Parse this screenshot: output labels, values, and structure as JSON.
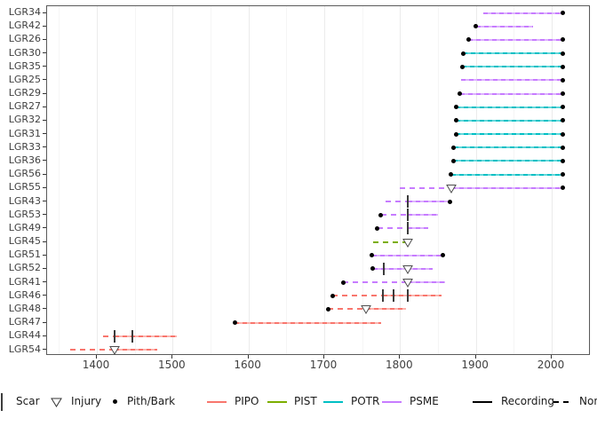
{
  "colors": {
    "PIPO": "#F8766D",
    "PIPO_light": "#fcb4ae",
    "PIST": "#7CAE00",
    "PIST_light": "#b0cf60",
    "POTR": "#00BFC4",
    "POTR_light": "#63d8db",
    "PSME": "#C77CFF",
    "PSME_light": "#ddb2ff",
    "recording_black": "#000000",
    "marker_stroke": "#4d4d4d",
    "axis_text": "#404040",
    "panel_border": "#5a5a5a",
    "grid_major": "#ebebeb",
    "grid_minor": "#f5f5f5"
  },
  "chart_data": {
    "type": "line",
    "title": "",
    "xlabel": "",
    "ylabel": "",
    "x_ticks": [
      1400,
      1500,
      1600,
      1700,
      1800,
      1900,
      2000
    ],
    "minor_ticks": [
      1350,
      1450,
      1550,
      1650,
      1750,
      1850,
      1950,
      2050
    ],
    "xlim": [
      1334,
      2052
    ],
    "legend_position": "bottom",
    "grid": true,
    "series": [
      {
        "name": "LGR34",
        "species": "PSME",
        "pith": false,
        "bark": true,
        "segments": [
          {
            "start": 1910,
            "end": 2015,
            "recording": true
          }
        ],
        "scars": [],
        "injuries": []
      },
      {
        "name": "LGR42",
        "species": "PSME",
        "pith": true,
        "bark": false,
        "segments": [
          {
            "start": 1900,
            "end": 1975,
            "recording": true
          }
        ],
        "scars": [],
        "injuries": []
      },
      {
        "name": "LGR26",
        "species": "PSME",
        "pith": true,
        "bark": true,
        "segments": [
          {
            "start": 1890,
            "end": 2015,
            "recording": true
          }
        ],
        "scars": [],
        "injuries": []
      },
      {
        "name": "LGR30",
        "species": "POTR",
        "pith": true,
        "bark": true,
        "segments": [
          {
            "start": 1883,
            "end": 2015,
            "recording": true
          }
        ],
        "scars": [],
        "injuries": []
      },
      {
        "name": "LGR35",
        "species": "POTR",
        "pith": true,
        "bark": true,
        "segments": [
          {
            "start": 1882,
            "end": 2015,
            "recording": true
          }
        ],
        "scars": [],
        "injuries": []
      },
      {
        "name": "LGR25",
        "species": "PSME",
        "pith": false,
        "bark": true,
        "segments": [
          {
            "start": 1880,
            "end": 2015,
            "recording": true
          }
        ],
        "scars": [],
        "injuries": []
      },
      {
        "name": "LGR29",
        "species": "PSME",
        "pith": true,
        "bark": true,
        "segments": [
          {
            "start": 1879,
            "end": 2015,
            "recording": true
          }
        ],
        "scars": [],
        "injuries": []
      },
      {
        "name": "LGR27",
        "species": "POTR",
        "pith": true,
        "bark": true,
        "segments": [
          {
            "start": 1874,
            "end": 2015,
            "recording": true
          }
        ],
        "scars": [],
        "injuries": []
      },
      {
        "name": "LGR32",
        "species": "POTR",
        "pith": true,
        "bark": true,
        "segments": [
          {
            "start": 1874,
            "end": 2015,
            "recording": true
          }
        ],
        "scars": [],
        "injuries": []
      },
      {
        "name": "LGR31",
        "species": "POTR",
        "pith": true,
        "bark": true,
        "segments": [
          {
            "start": 1874,
            "end": 2015,
            "recording": true
          }
        ],
        "scars": [],
        "injuries": []
      },
      {
        "name": "LGR33",
        "species": "POTR",
        "pith": true,
        "bark": true,
        "segments": [
          {
            "start": 1871,
            "end": 2015,
            "recording": true
          }
        ],
        "scars": [],
        "injuries": []
      },
      {
        "name": "LGR36",
        "species": "POTR",
        "pith": true,
        "bark": true,
        "segments": [
          {
            "start": 1870,
            "end": 2015,
            "recording": true
          }
        ],
        "scars": [],
        "injuries": []
      },
      {
        "name": "LGR56",
        "species": "POTR",
        "pith": true,
        "bark": true,
        "segments": [
          {
            "start": 1867,
            "end": 2015,
            "recording": true
          }
        ],
        "scars": [],
        "injuries": []
      },
      {
        "name": "LGR55",
        "species": "PSME",
        "pith": false,
        "bark": true,
        "segments": [
          {
            "start": 1800,
            "end": 1867,
            "recording": false
          },
          {
            "start": 1867,
            "end": 2015,
            "recording": true
          }
        ],
        "scars": [],
        "injuries": [
          1867
        ]
      },
      {
        "name": "LGR43",
        "species": "PSME",
        "pith": false,
        "bark": true,
        "segments": [
          {
            "start": 1781,
            "end": 1810,
            "recording": false
          },
          {
            "start": 1810,
            "end": 1866,
            "recording": true
          }
        ],
        "scars": [
          1810
        ],
        "injuries": []
      },
      {
        "name": "LGR53",
        "species": "PSME",
        "pith": true,
        "bark": false,
        "segments": [
          {
            "start": 1775,
            "end": 1810,
            "recording": false
          },
          {
            "start": 1810,
            "end": 1850,
            "recording": true
          }
        ],
        "scars": [
          1810
        ],
        "injuries": []
      },
      {
        "name": "LGR49",
        "species": "PSME",
        "pith": true,
        "bark": false,
        "segments": [
          {
            "start": 1770,
            "end": 1810,
            "recording": false
          },
          {
            "start": 1810,
            "end": 1837,
            "recording": true
          }
        ],
        "scars": [
          1810
        ],
        "injuries": []
      },
      {
        "name": "LGR45",
        "species": "PIST",
        "pith": false,
        "bark": false,
        "segments": [
          {
            "start": 1765,
            "end": 1810,
            "recording": false
          }
        ],
        "scars": [],
        "injuries": [
          1810
        ]
      },
      {
        "name": "LGR51",
        "species": "PSME",
        "pith": true,
        "bark": true,
        "segments": [
          {
            "start": 1763,
            "end": 1857,
            "recording": true
          }
        ],
        "scars": [],
        "injuries": []
      },
      {
        "name": "LGR52",
        "species": "PSME",
        "pith": true,
        "bark": false,
        "segments": [
          {
            "start": 1764,
            "end": 1843,
            "recording": true
          }
        ],
        "scars": [
          1778
        ],
        "injuries": [
          1810
        ]
      },
      {
        "name": "LGR41",
        "species": "PSME",
        "pith": true,
        "bark": false,
        "segments": [
          {
            "start": 1725,
            "end": 1810,
            "recording": false
          },
          {
            "start": 1810,
            "end": 1859,
            "recording": true
          }
        ],
        "scars": [],
        "injuries": [
          1810
        ]
      },
      {
        "name": "LGR46",
        "species": "PIPO",
        "pith": true,
        "bark": false,
        "segments": [
          {
            "start": 1711,
            "end": 1777,
            "recording": false
          },
          {
            "start": 1777,
            "end": 1855,
            "recording": true
          }
        ],
        "scars": [
          1777,
          1791,
          1810
        ],
        "injuries": []
      },
      {
        "name": "LGR48",
        "species": "PIPO",
        "pith": true,
        "bark": false,
        "segments": [
          {
            "start": 1705,
            "end": 1755,
            "recording": false
          },
          {
            "start": 1755,
            "end": 1808,
            "recording": true
          }
        ],
        "scars": [],
        "injuries": [
          1755
        ]
      },
      {
        "name": "LGR47",
        "species": "PIPO",
        "pith": true,
        "bark": false,
        "segments": [
          {
            "start": 1582,
            "end": 1775,
            "recording": true
          }
        ],
        "scars": [],
        "injuries": []
      },
      {
        "name": "LGR44",
        "species": "PIPO",
        "pith": false,
        "bark": false,
        "segments": [
          {
            "start": 1408,
            "end": 1423,
            "recording": false
          },
          {
            "start": 1423,
            "end": 1505,
            "recording": true
          }
        ],
        "scars": [
          1423,
          1447
        ],
        "injuries": []
      },
      {
        "name": "LGR54",
        "species": "PIPO",
        "pith": false,
        "bark": false,
        "segments": [
          {
            "start": 1365,
            "end": 1423,
            "recording": false
          },
          {
            "start": 1423,
            "end": 1480,
            "recording": true
          }
        ],
        "scars": [],
        "injuries": [
          1423
        ]
      }
    ]
  },
  "legend": {
    "scar_label": "Scar",
    "injury_label": "Injury",
    "pith_bark_label": "Pith/Bark",
    "species": [
      {
        "label": "PIPO",
        "color": "#F8766D"
      },
      {
        "label": "PIST",
        "color": "#7CAE00"
      },
      {
        "label": "POTR",
        "color": "#00BFC4"
      },
      {
        "label": "PSME",
        "color": "#C77CFF"
      }
    ],
    "linetypes": [
      {
        "label": "Recording",
        "style": "solid"
      },
      {
        "label": "Non-recording",
        "style": "dashed"
      }
    ]
  }
}
